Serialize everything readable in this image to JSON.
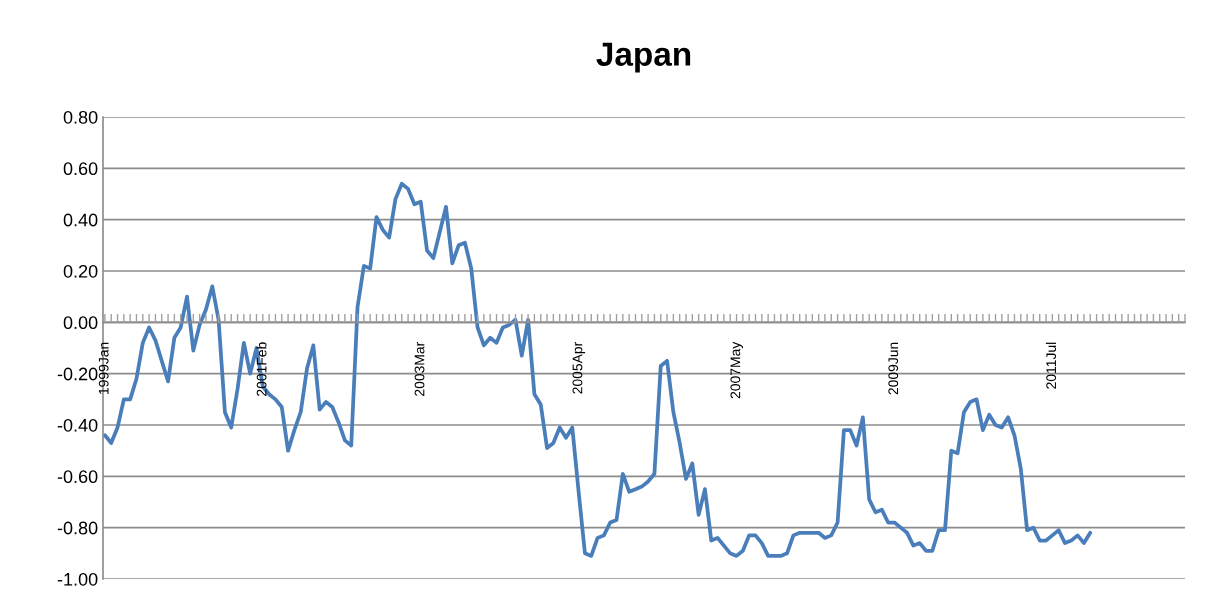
{
  "chart_data": {
    "type": "line",
    "title": "Japan",
    "categories": [
      "1999Jan",
      null,
      null,
      null,
      null,
      null,
      null,
      null,
      null,
      null,
      null,
      null,
      null,
      null,
      null,
      null,
      null,
      null,
      null,
      null,
      null,
      null,
      null,
      null,
      null,
      "2001Feb",
      null,
      null,
      null,
      null,
      null,
      null,
      null,
      null,
      null,
      null,
      null,
      null,
      null,
      null,
      null,
      null,
      null,
      null,
      null,
      null,
      null,
      null,
      null,
      null,
      "2003Mar",
      null,
      null,
      null,
      null,
      null,
      null,
      null,
      null,
      null,
      null,
      null,
      null,
      null,
      null,
      null,
      null,
      null,
      null,
      null,
      null,
      null,
      null,
      null,
      null,
      "2005Apr",
      null,
      null,
      null,
      null,
      null,
      null,
      null,
      null,
      null,
      null,
      null,
      null,
      null,
      null,
      null,
      null,
      null,
      null,
      null,
      null,
      null,
      null,
      null,
      null,
      "2007May",
      null,
      null,
      null,
      null,
      null,
      null,
      null,
      null,
      null,
      null,
      null,
      null,
      null,
      null,
      null,
      null,
      null,
      null,
      null,
      null,
      null,
      null,
      null,
      null,
      "2009Jun",
      null,
      null,
      null,
      null,
      null,
      null,
      null,
      null,
      null,
      null,
      null,
      null,
      null,
      null,
      null,
      null,
      null,
      null,
      null,
      null,
      null,
      null,
      null,
      null,
      "2011Jul",
      null,
      null,
      null,
      null,
      null,
      null,
      null,
      null,
      null,
      null,
      null,
      null,
      null,
      null,
      null,
      null,
      null,
      null,
      null,
      null,
      null
    ],
    "series": [
      {
        "color": "#4a7ebb",
        "values": [
          -0.44,
          -0.47,
          -0.41,
          -0.3,
          -0.3,
          -0.22,
          -0.08,
          -0.02,
          -0.07,
          -0.15,
          -0.23,
          -0.06,
          -0.02,
          0.1,
          -0.11,
          -0.01,
          0.05,
          0.14,
          0.01,
          -0.35,
          -0.41,
          -0.26,
          -0.08,
          -0.2,
          -0.1,
          -0.25,
          -0.28,
          -0.3,
          -0.33,
          -0.5,
          -0.42,
          -0.35,
          -0.18,
          -0.09,
          -0.34,
          -0.31,
          -0.33,
          -0.39,
          -0.46,
          -0.48,
          0.06,
          0.22,
          0.21,
          0.41,
          0.36,
          0.33,
          0.48,
          0.54,
          0.52,
          0.46,
          0.47,
          0.28,
          0.25,
          0.35,
          0.45,
          0.23,
          0.3,
          0.31,
          0.21,
          -0.02,
          -0.09,
          -0.06,
          -0.08,
          -0.02,
          -0.01,
          0.01,
          -0.13,
          0.01,
          -0.28,
          -0.32,
          -0.49,
          -0.47,
          -0.41,
          -0.45,
          -0.41,
          -0.66,
          -0.9,
          -0.91,
          -0.84,
          -0.83,
          -0.78,
          -0.77,
          -0.59,
          -0.66,
          -0.65,
          -0.64,
          -0.62,
          -0.59,
          -0.17,
          -0.15,
          -0.35,
          -0.47,
          -0.61,
          -0.55,
          -0.75,
          -0.65,
          -0.85,
          -0.84,
          -0.87,
          -0.9,
          -0.91,
          -0.89,
          -0.83,
          -0.83,
          -0.86,
          -0.91,
          -0.91,
          -0.91,
          -0.9,
          -0.83,
          -0.82,
          -0.82,
          -0.82,
          -0.82,
          -0.84,
          -0.83,
          -0.78,
          -0.42,
          -0.42,
          -0.48,
          -0.37,
          -0.69,
          -0.74,
          -0.73,
          -0.78,
          -0.78,
          -0.8,
          -0.82,
          -0.87,
          -0.86,
          -0.89,
          -0.89,
          -0.81,
          -0.81,
          -0.5,
          -0.51,
          -0.35,
          -0.31,
          -0.3,
          -0.42,
          -0.36,
          -0.4,
          -0.41,
          -0.37,
          -0.44,
          -0.57,
          -0.81,
          -0.8,
          -0.85,
          -0.85,
          -0.83,
          -0.81,
          -0.86,
          -0.85,
          -0.83,
          -0.86,
          -0.82,
          null,
          null,
          null,
          null,
          null,
          null,
          null,
          null,
          null,
          null,
          null,
          null,
          null,
          null,
          null
        ]
      }
    ],
    "ylim": [
      -1.0,
      0.8
    ],
    "yticks": [
      {
        "value": 0.8,
        "label": "0.80"
      },
      {
        "value": 0.6,
        "label": "0.60"
      },
      {
        "value": 0.4,
        "label": "0.40"
      },
      {
        "value": 0.2,
        "label": "0.20"
      },
      {
        "value": 0,
        "label": "0.00"
      },
      {
        "value": -0.2,
        "label": "-0.20"
      },
      {
        "value": -0.4,
        "label": "-0.40"
      },
      {
        "value": -0.6,
        "label": "-0.60"
      },
      {
        "value": -0.8,
        "label": "-0.80"
      },
      {
        "value": -1.0,
        "label": "-1.00"
      }
    ],
    "grid": "y",
    "marker": "none",
    "line_style": "solid"
  }
}
